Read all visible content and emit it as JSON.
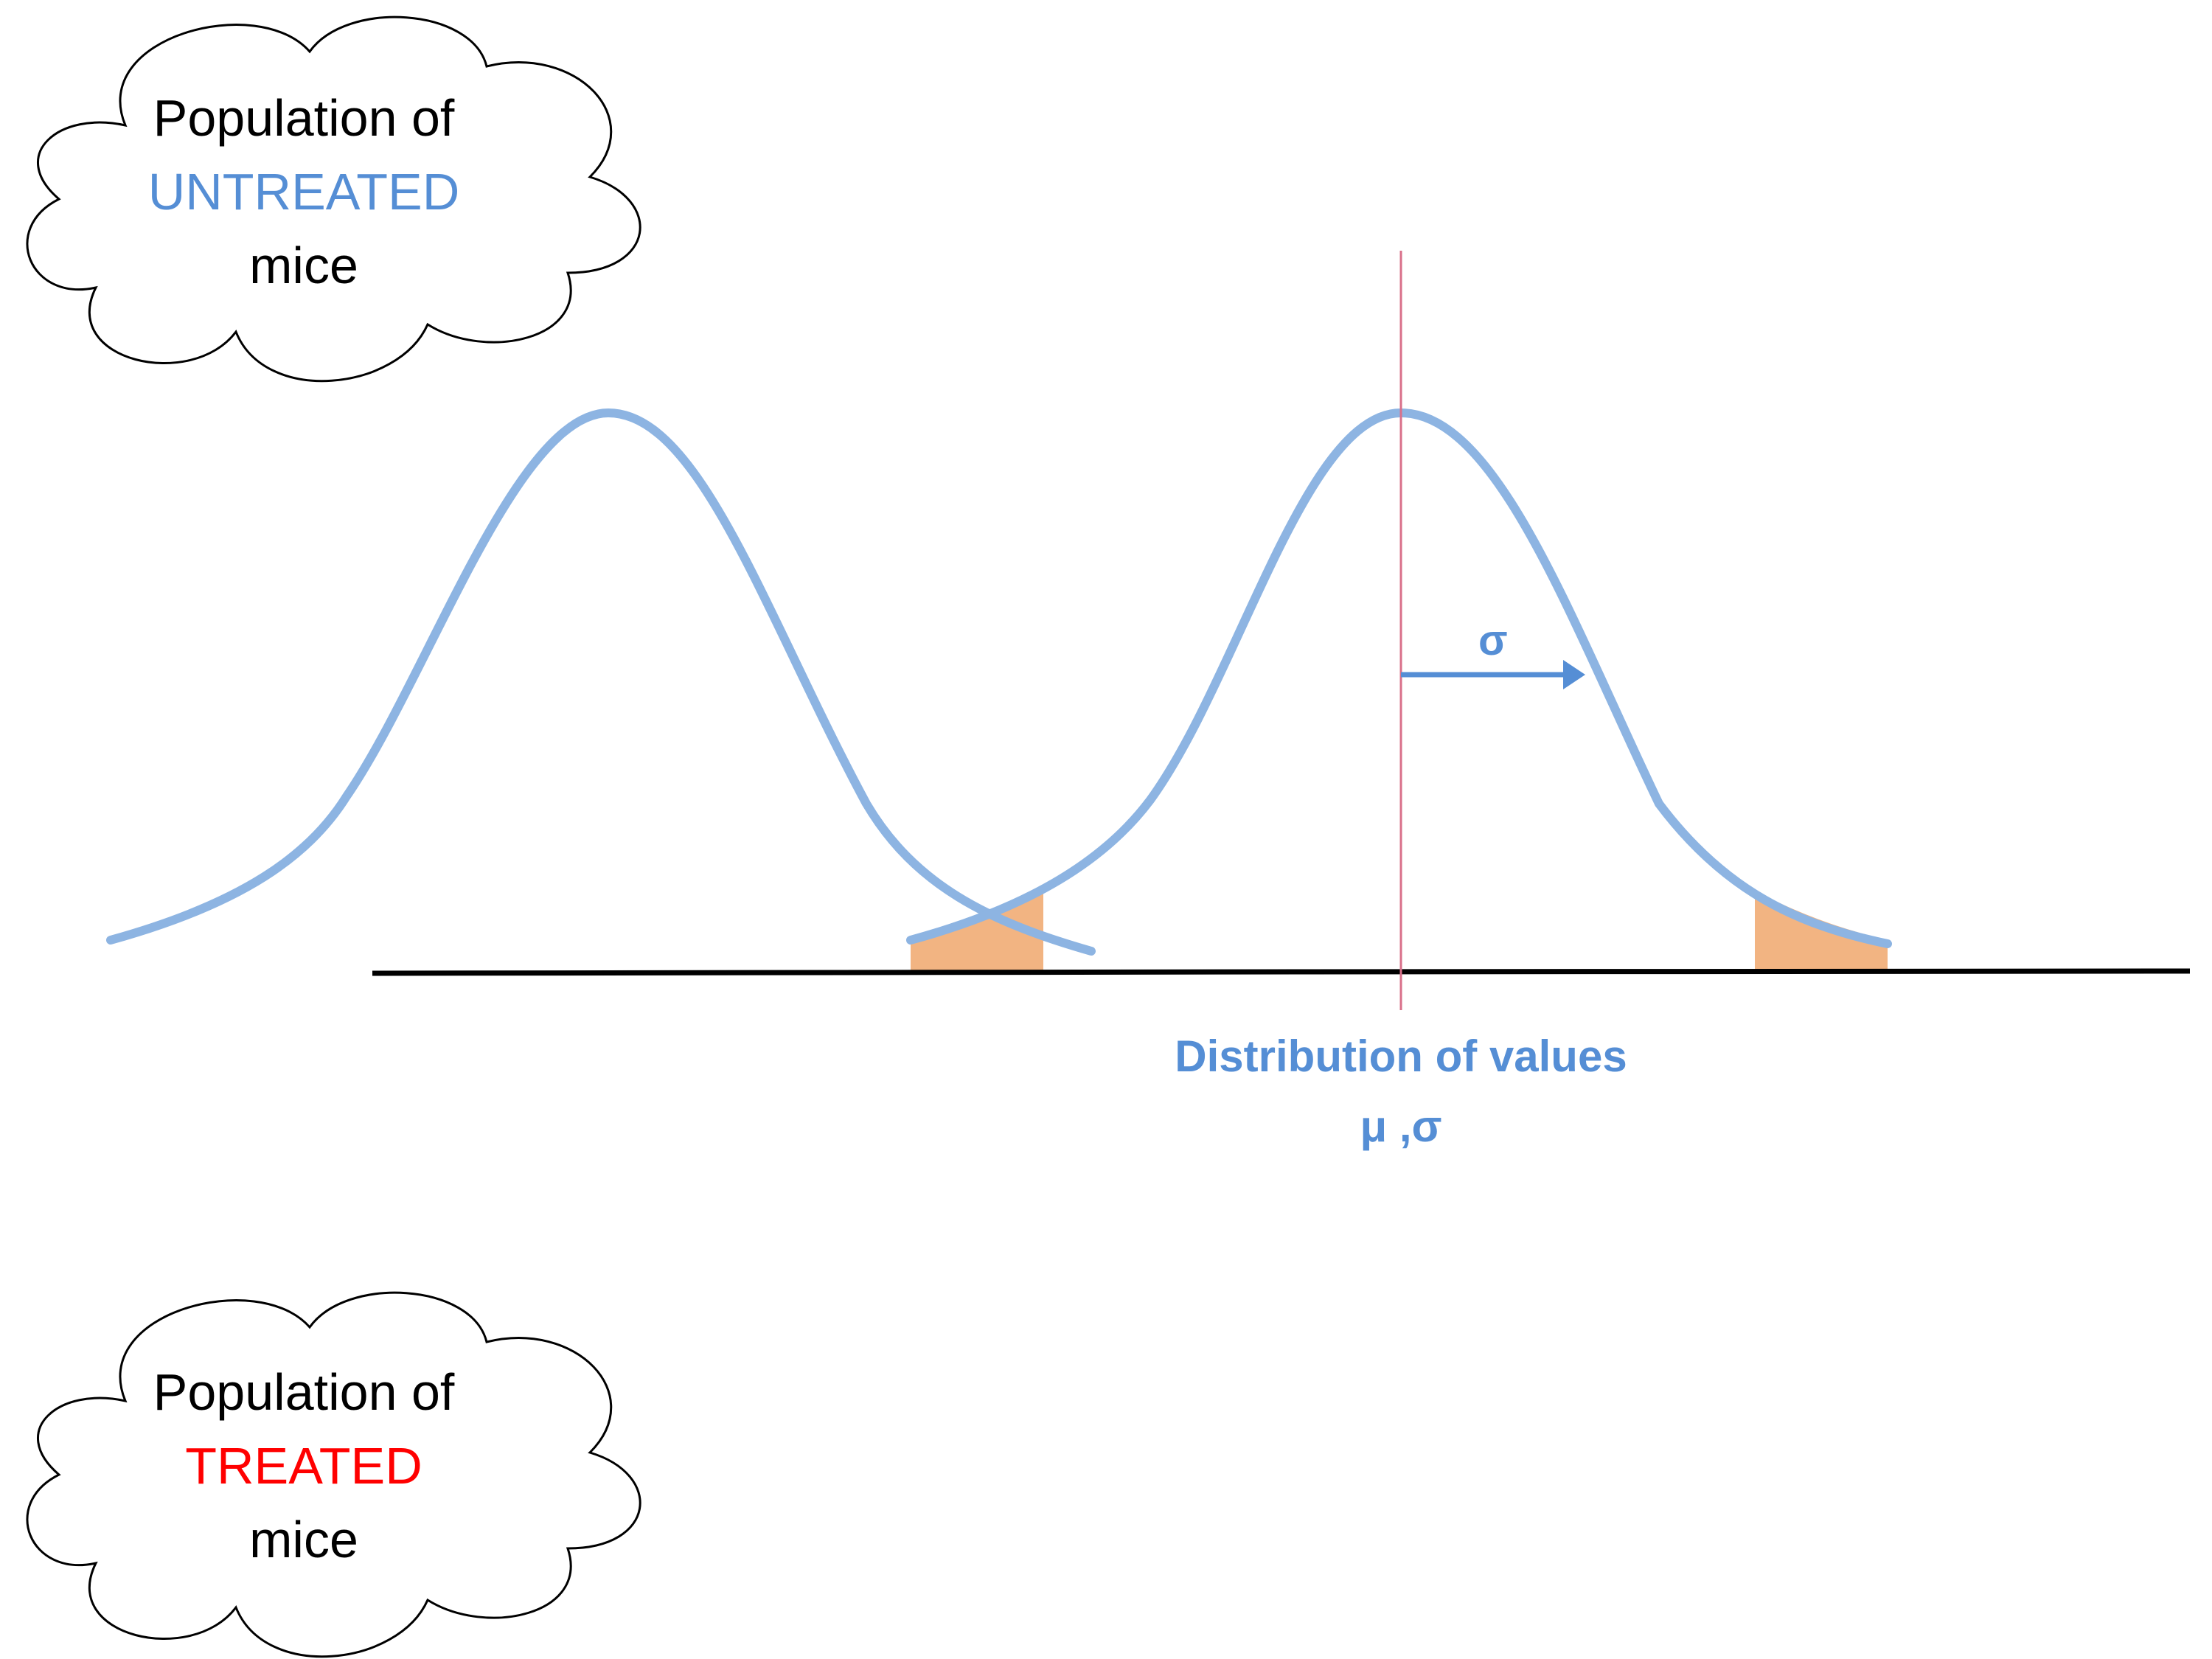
{
  "colors": {
    "curve": "#8DB4E2",
    "accent_blue": "#558ED5",
    "treated_red": "#FF0000",
    "tail_fill": "#F2B482",
    "mean_line": "#D9708A",
    "axis": "#000000",
    "cloud_stroke": "#000000"
  },
  "untreated_cloud": {
    "line1": "Population of",
    "line2": "UNTREATED",
    "line3": "mice"
  },
  "treated_cloud": {
    "line1": "Population of",
    "line2": "TREATED",
    "line3": "mice"
  },
  "distribution": {
    "label_line1": "Distribution of values",
    "label_line2": "μ ,σ",
    "sigma_symbol": "σ"
  }
}
